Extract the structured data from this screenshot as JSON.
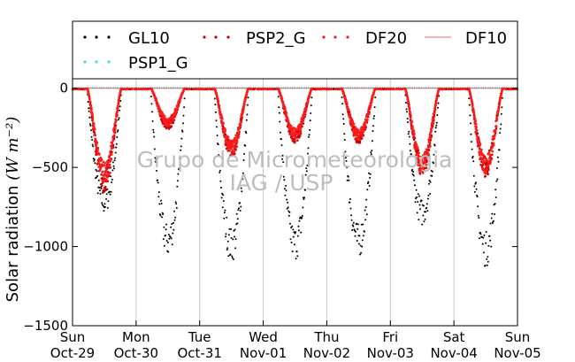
{
  "chart_data": {
    "type": "scatter",
    "title": "",
    "xlabel": "",
    "ylabel": "Solar radiation",
    "ylabel_unit": "(W m⁻²)",
    "ylim": [
      -1500,
      60
    ],
    "yticks": [
      0,
      -500,
      -1000,
      -1500
    ],
    "ytick_labels": [
      "0",
      "−500",
      "−1000",
      "−1500"
    ],
    "x_day_labels": [
      {
        "day": "Sun",
        "date": "Oct-29"
      },
      {
        "day": "Mon",
        "date": "Oct-30"
      },
      {
        "day": "Tue",
        "date": "Oct-31"
      },
      {
        "day": "Wed",
        "date": "Nov-01"
      },
      {
        "day": "Thu",
        "date": "Nov-02"
      },
      {
        "day": "Fri",
        "date": "Nov-03"
      },
      {
        "day": "Sat",
        "date": "Nov-04"
      },
      {
        "day": "Sun",
        "date": "Nov-05"
      }
    ],
    "grid": "vertical",
    "legend_position": "top",
    "watermark_lines": [
      "Grupo de Micrometeorologia",
      "IAG / USP"
    ],
    "series": [
      {
        "name": "GL10",
        "style": "dots",
        "color": "#000000",
        "daily_min": [
          -800,
          -1070,
          -1100,
          -1090,
          -1070,
          -870,
          -1130
        ],
        "y": [
          -5,
          -10,
          -40,
          -150,
          -380,
          -800,
          -300,
          -20,
          -5,
          -10,
          -60,
          -350,
          -1070,
          -600,
          -80,
          -5,
          -10,
          -30,
          -300,
          -1100,
          -800,
          -60,
          -5,
          -5,
          -20,
          -250,
          -1090,
          -900,
          -60,
          -5,
          -5,
          -30,
          -400,
          -1070,
          -800,
          -40,
          -5,
          -5,
          -40,
          -250,
          -870,
          -400,
          -40,
          -5,
          -5,
          -40,
          -350,
          -1130,
          -500,
          -40,
          -5
        ]
      },
      {
        "name": "PSP2_G",
        "style": "dots",
        "color": "#d62728",
        "daily_min": [
          -660,
          -260,
          -440,
          -350,
          -350,
          -560,
          -560
        ],
        "y": [
          -5,
          -10,
          -30,
          -200,
          -660,
          -150,
          -50,
          -5,
          -10,
          -30,
          -260,
          -150,
          -40,
          -5,
          -10,
          -40,
          -440,
          -200,
          -40,
          -5,
          -10,
          -60,
          -350,
          -150,
          -30,
          -5,
          -10,
          -60,
          -350,
          -150,
          -30,
          -5,
          -10,
          -60,
          -560,
          -250,
          -40,
          -5,
          -10,
          -60,
          -560,
          -200,
          -30,
          -5
        ]
      },
      {
        "name": "DF20",
        "style": "dots",
        "color": "#ff0000",
        "daily_min": [
          -600,
          -240,
          -420,
          -320,
          -330,
          -540,
          -540
        ],
        "y": [
          -5,
          -10,
          -30,
          -180,
          -600,
          -140,
          -40,
          -5,
          -10,
          -30,
          -240,
          -140,
          -40,
          -5,
          -10,
          -40,
          -420,
          -190,
          -40,
          -5,
          -10,
          -60,
          -320,
          -140,
          -30,
          -5,
          -10,
          -60,
          -330,
          -140,
          -30,
          -5,
          -10,
          -60,
          -540,
          -240,
          -40,
          -5,
          -10,
          -60,
          -540,
          -190,
          -30,
          -5
        ]
      },
      {
        "name": "DF10",
        "style": "line",
        "color": "#ff8080",
        "y": [
          0,
          0,
          0,
          0,
          0,
          0,
          0,
          0
        ]
      },
      {
        "name": "PSP1_G",
        "style": "dots",
        "color": "#40e0d0",
        "y": [
          0,
          0,
          0,
          0,
          0,
          0,
          0,
          0
        ]
      }
    ]
  }
}
